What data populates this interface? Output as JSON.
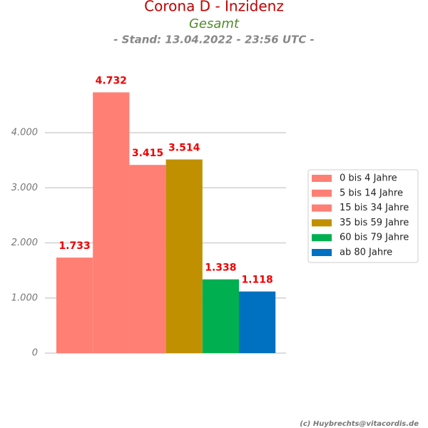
{
  "chart_data": {
    "type": "bar",
    "title": "Corona D - Inzidenz",
    "subtitle": "Gesamt",
    "stand": "- Stand: 13.04.2022 - 23:56 UTC -",
    "source": "(c) Huybrechts@vitacordis.de",
    "ylim": [
      0,
      5000
    ],
    "yticks": [
      0,
      {
        "value": 1000,
        "label": "1.000"
      },
      {
        "value": 2000,
        "label": "2.000"
      },
      {
        "value": 3000,
        "label": "3.000"
      },
      {
        "value": 4000,
        "label": "4.000"
      }
    ],
    "grid": true,
    "legend": "right",
    "series": [
      {
        "name": "0 bis 4 Jahre",
        "color": "#ff7f74",
        "values": [
          1733
        ],
        "value_labels": [
          "1.733"
        ]
      },
      {
        "name": "5 bis 14 Jahre",
        "color": "#ff7f74",
        "values": [
          4732
        ],
        "value_labels": [
          "4.732"
        ]
      },
      {
        "name": "15 bis 34 Jahre",
        "color": "#ff7f74",
        "values": [
          3415
        ],
        "value_labels": [
          "3.415"
        ]
      },
      {
        "name": "35 bis 59 Jahre",
        "color": "#c09000",
        "values": [
          3514
        ],
        "value_labels": [
          "3.514"
        ]
      },
      {
        "name": "60 bis 79 Jahre",
        "color": "#00b050",
        "values": [
          1338
        ],
        "value_labels": [
          "1.338"
        ]
      },
      {
        "name": "ab 80 Jahre",
        "color": "#0070c0",
        "values": [
          1118
        ],
        "value_labels": [
          "1.118"
        ]
      }
    ]
  }
}
